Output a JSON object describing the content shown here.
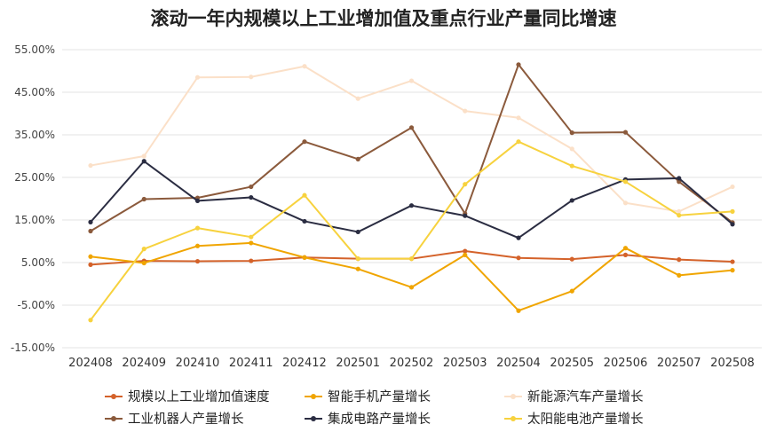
{
  "chart_data": {
    "type": "line",
    "title": "滚动一年内规模以上工业增加值及重点行业产量同比增速",
    "xlabel": "",
    "ylabel": "",
    "ylim": [
      -15,
      55
    ],
    "y_ticks": [
      "55.00%",
      "45.00%",
      "35.00%",
      "25.00%",
      "15.00%",
      "5.00%",
      "-5.00%",
      "-15.00%"
    ],
    "y_tick_values": [
      55,
      45,
      35,
      25,
      15,
      5,
      -5,
      -15
    ],
    "categories": [
      "202408",
      "202409",
      "202410",
      "202411",
      "202412",
      "202501",
      "202502",
      "202503",
      "202504",
      "202505",
      "202506",
      "202507",
      "202508"
    ],
    "grid": true,
    "legend_position": "bottom",
    "series": [
      {
        "name": "规模以上工业增加值速度",
        "color": "#d4622a",
        "values": [
          4.5,
          5.4,
          5.3,
          5.4,
          6.2,
          5.9,
          5.9,
          7.7,
          6.1,
          5.8,
          6.8,
          5.7,
          5.2
        ]
      },
      {
        "name": "智能手机产量增长",
        "color": "#f0a500",
        "values": [
          6.4,
          4.9,
          8.9,
          9.6,
          6.2,
          3.5,
          -0.8,
          6.8,
          -6.3,
          -1.7,
          8.4,
          2.0,
          3.2
        ]
      },
      {
        "name": "新能源汽车产量增长",
        "color": "#fbe0c8",
        "values": [
          27.8,
          30.0,
          48.5,
          48.6,
          51.1,
          43.5,
          47.7,
          40.6,
          39.0,
          31.7,
          19.0,
          17.0,
          22.8
        ]
      },
      {
        "name": "工业机器人产量增长",
        "color": "#8b5a3c",
        "values": [
          12.4,
          19.9,
          20.2,
          22.8,
          33.4,
          29.3,
          36.7,
          16.5,
          51.5,
          35.5,
          35.6,
          24.0,
          14.4
        ]
      },
      {
        "name": "集成电路产量增长",
        "color": "#2b2d42",
        "values": [
          14.5,
          28.8,
          19.5,
          20.3,
          14.7,
          12.2,
          18.4,
          16.0,
          10.8,
          19.6,
          24.5,
          24.8,
          14.0
        ]
      },
      {
        "name": "太阳能电池产量增长",
        "color": "#f7d23e",
        "values": [
          -8.5,
          8.2,
          13.1,
          11.0,
          20.8,
          5.9,
          5.9,
          23.4,
          33.4,
          27.7,
          24.0,
          16.1,
          17.0
        ]
      }
    ]
  }
}
